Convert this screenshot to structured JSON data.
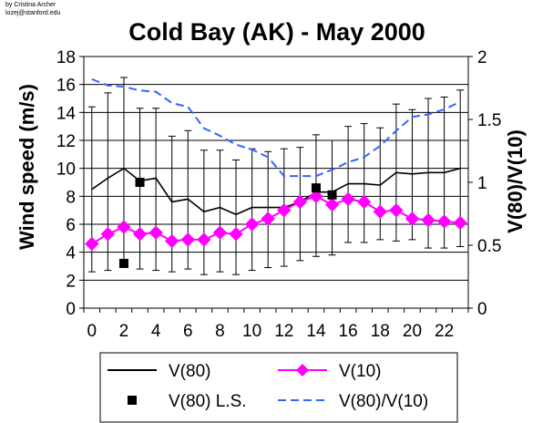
{
  "credit": [
    "by Cristina Archer",
    "lozej@stanford.edu"
  ],
  "chart_data": {
    "type": "line",
    "title": "Cold Bay (AK) - May 2000",
    "ylabel": "Wind speed (m/s)",
    "y2label": "V(80)/V(10)",
    "ylim": [
      0,
      18
    ],
    "y2lim": [
      0,
      2
    ],
    "yticks": [
      "0",
      "2",
      "4",
      "6",
      "8",
      "10",
      "12",
      "14",
      "16",
      "18"
    ],
    "y2ticks": [
      "0",
      "0.5",
      "1",
      "1.5",
      "2"
    ],
    "xticks": [
      "0",
      "2",
      "4",
      "6",
      "8",
      "10",
      "12",
      "14",
      "16",
      "18",
      "20",
      "22"
    ],
    "x": [
      0,
      1,
      2,
      3,
      4,
      5,
      6,
      7,
      8,
      9,
      10,
      11,
      12,
      13,
      14,
      15,
      16,
      17,
      18,
      19,
      20,
      21,
      22,
      23
    ],
    "grid": true,
    "legend_position": "bottom",
    "series": [
      {
        "name": "V(80)",
        "axis": "left",
        "style": "solid",
        "color": "#000000",
        "values": [
          8.5,
          9.3,
          10.0,
          9.1,
          9.3,
          7.6,
          7.8,
          6.9,
          7.2,
          6.7,
          7.2,
          7.2,
          7.2,
          7.6,
          8.3,
          8.3,
          8.9,
          8.9,
          8.8,
          9.7,
          9.6,
          9.7,
          9.7,
          10.0
        ],
        "error_low": [
          2.6,
          2.7,
          3.2,
          2.8,
          2.7,
          2.6,
          2.8,
          2.4,
          2.6,
          2.4,
          2.7,
          2.9,
          3.0,
          3.4,
          3.7,
          3.8,
          4.7,
          4.7,
          4.9,
          4.8,
          4.9,
          4.3,
          4.3,
          4.4
        ],
        "error_high": [
          14.4,
          15.4,
          16.5,
          14.3,
          14.3,
          12.3,
          12.7,
          11.3,
          11.3,
          10.6,
          11.4,
          11.2,
          11.4,
          11.5,
          12.4,
          12.0,
          13.0,
          13.2,
          12.9,
          14.6,
          14.2,
          15.0,
          15.1,
          15.6
        ]
      },
      {
        "name": "V(10)",
        "axis": "left",
        "style": "diamond-markers",
        "color": "#ff00ff",
        "values": [
          4.6,
          5.3,
          5.8,
          5.3,
          5.4,
          4.8,
          4.9,
          4.9,
          5.4,
          5.3,
          6.0,
          6.4,
          7.0,
          7.6,
          8.0,
          7.4,
          7.8,
          7.6,
          6.9,
          7.0,
          6.4,
          6.3,
          6.2,
          6.1
        ]
      },
      {
        "name": "V(80) L.S.",
        "axis": "left",
        "style": "square-markers",
        "color": "#000000",
        "x": [
          2,
          3,
          14,
          15
        ],
        "values": [
          3.2,
          9.0,
          8.6,
          8.1
        ]
      },
      {
        "name": "V(80)/V(10)",
        "axis": "right",
        "style": "dashed",
        "color": "#3366ff",
        "values": [
          1.82,
          1.77,
          1.76,
          1.73,
          1.72,
          1.63,
          1.6,
          1.43,
          1.37,
          1.3,
          1.26,
          1.2,
          1.05,
          1.05,
          1.05,
          1.1,
          1.16,
          1.2,
          1.29,
          1.41,
          1.52,
          1.54,
          1.58,
          1.64
        ]
      }
    ]
  }
}
